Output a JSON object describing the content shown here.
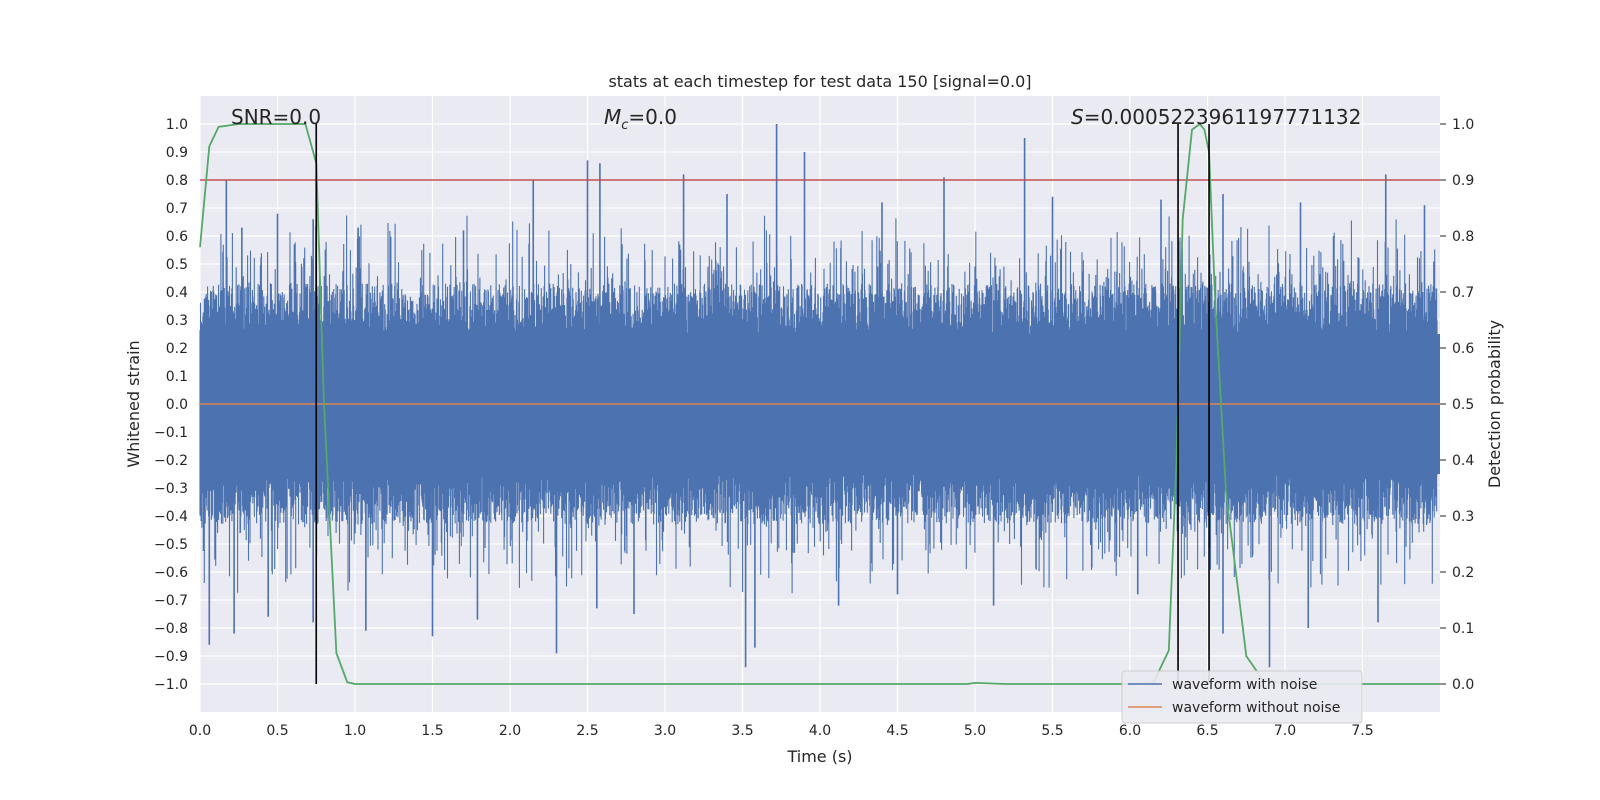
{
  "chart_data": {
    "type": "line",
    "title": "stats at each timestep for test data 150 [signal=0.0]",
    "xlabel": "Time (s)",
    "ylabel": "Whitened strain",
    "y2label": "Detection probability",
    "xlim": [
      0.0,
      8.0
    ],
    "ylim": [
      -1.1,
      1.1
    ],
    "y2lim": [
      -0.05,
      1.05
    ],
    "xticks": [
      "0.0",
      "0.5",
      "1.0",
      "1.5",
      "2.0",
      "2.5",
      "3.0",
      "3.5",
      "4.0",
      "4.5",
      "5.0",
      "5.5",
      "6.0",
      "6.5",
      "7.0",
      "7.5"
    ],
    "yticks": [
      "1.0",
      "0.9",
      "0.8",
      "0.7",
      "0.6",
      "0.5",
      "0.4",
      "0.3",
      "0.2",
      "0.1",
      "0.0",
      "−0.1",
      "−0.2",
      "−0.3",
      "−0.4",
      "−0.5",
      "−0.6",
      "−0.7",
      "−0.8",
      "−0.9",
      "−1.0"
    ],
    "y2ticks": [
      "1.0",
      "0.9",
      "0.8",
      "0.7",
      "0.6",
      "0.5",
      "0.4",
      "0.3",
      "0.2",
      "0.1",
      "0.0"
    ],
    "grid": true,
    "annotations": {
      "snr": "SNR=0.0",
      "mc_base": "M",
      "mc_sub": "c",
      "mc_value": "=0.0",
      "s_var": "S",
      "s_value": "=0.0005223961197771132"
    },
    "threshold": 0.9,
    "vlines": [
      0.75,
      6.31,
      6.51
    ],
    "series": [
      {
        "name": "waveform with noise",
        "color": "#4c72b0",
        "description_values": "noise envelope",
        "peaks": [
          [
            0.17,
            0.8
          ],
          [
            0.27,
            0.63
          ],
          [
            0.5,
            0.68
          ],
          [
            0.73,
            0.66
          ],
          [
            1.02,
            0.63
          ],
          [
            1.7,
            0.62
          ],
          [
            2.15,
            0.8
          ],
          [
            2.5,
            0.87
          ],
          [
            2.58,
            0.86
          ],
          [
            3.12,
            0.82
          ],
          [
            3.4,
            0.75
          ],
          [
            3.72,
            1.0
          ],
          [
            3.9,
            0.9
          ],
          [
            4.4,
            0.72
          ],
          [
            4.8,
            0.81
          ],
          [
            5.32,
            0.95
          ],
          [
            5.5,
            0.74
          ],
          [
            6.2,
            0.73
          ],
          [
            6.6,
            0.75
          ],
          [
            7.1,
            0.72
          ],
          [
            7.65,
            0.82
          ],
          [
            7.9,
            0.71
          ]
        ],
        "troughs": [
          [
            0.06,
            -0.86
          ],
          [
            0.22,
            -0.82
          ],
          [
            0.44,
            -0.76
          ],
          [
            0.73,
            -0.78
          ],
          [
            1.07,
            -0.81
          ],
          [
            1.5,
            -0.83
          ],
          [
            1.79,
            -0.77
          ],
          [
            2.3,
            -0.89
          ],
          [
            2.56,
            -0.73
          ],
          [
            2.8,
            -0.75
          ],
          [
            3.52,
            -0.94
          ],
          [
            3.58,
            -0.87
          ],
          [
            4.12,
            -0.72
          ],
          [
            4.5,
            -0.68
          ],
          [
            5.12,
            -0.72
          ],
          [
            6.05,
            -0.68
          ],
          [
            6.6,
            -0.82
          ],
          [
            6.9,
            -0.94
          ],
          [
            7.15,
            -0.8
          ],
          [
            7.6,
            -0.78
          ]
        ]
      },
      {
        "name": "waveform without noise",
        "color": "#dd8452",
        "x": [
          0.0,
          8.0
        ],
        "y": [
          0.0,
          0.0
        ]
      },
      {
        "name": "",
        "color": "#55a868",
        "axis": "right",
        "x": [
          0.0,
          0.06,
          0.12,
          0.25,
          0.5,
          0.68,
          0.75,
          0.8,
          0.88,
          0.95,
          1.0,
          2.0,
          3.0,
          4.0,
          4.95,
          5.0,
          5.2,
          6.0,
          6.15,
          6.25,
          6.3,
          6.34,
          6.4,
          6.45,
          6.48,
          6.51,
          6.55,
          6.62,
          6.75,
          6.85,
          7.0,
          8.0
        ],
        "y": [
          0.78,
          0.96,
          0.995,
          1.0,
          1.0,
          1.0,
          0.93,
          0.5,
          0.055,
          0.003,
          0.0,
          0.0,
          0.0,
          0.0,
          0.0,
          0.002,
          0.0,
          0.0,
          0.002,
          0.06,
          0.4,
          0.83,
          0.99,
          1.0,
          0.99,
          0.95,
          0.68,
          0.34,
          0.05,
          0.01,
          0.0,
          0.0
        ]
      }
    ],
    "legend": {
      "placement": "lower-right",
      "entries": [
        "waveform with noise",
        "waveform without noise"
      ]
    },
    "colors": {
      "plot_bg": "#eaeaf2",
      "grid": "#ffffff",
      "threshold": "#c44e52",
      "vline": "#000000"
    }
  }
}
